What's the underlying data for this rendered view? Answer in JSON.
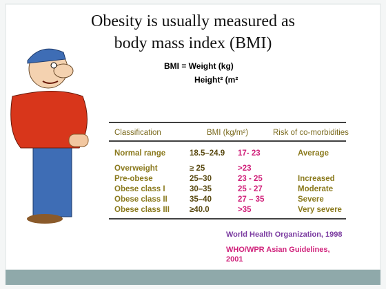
{
  "title": [
    "Obesity is usually measured as",
    "body mass index (BMI)"
  ],
  "formula": {
    "numerator": "BMI = Weight (kg)",
    "denominator": "Height² (m²"
  },
  "table": {
    "header": [
      "Classification",
      "BMI (kg/m²)",
      "Risk of co-morbidities"
    ],
    "rows": [
      {
        "classification": "Normal range",
        "bmi": "18.5–24.9",
        "asian": "17- 23",
        "risk": "Average"
      },
      {
        "classification": "Overweight",
        "bmi": "≥ 25",
        "asian": ">23"
      },
      {
        "classification": "Pre-obese",
        "bmi": "25–30",
        "asian": "23 - 25",
        "risk": "Increased"
      },
      {
        "classification": "Obese class I",
        "bmi": "30–35",
        "asian": "25 - 27",
        "risk": "Moderate"
      },
      {
        "classification": "Obese class II",
        "bmi": "35–40",
        "asian": "27 – 35",
        "risk": "Severe"
      },
      {
        "classification": "Obese class III",
        "bmi": "≥40.0",
        "asian": ">35",
        "risk": "Very severe"
      }
    ]
  },
  "notes": {
    "who": "World Health Organization, 1998",
    "asian": [
      "WHO/WPR Asian Guidelines,",
      "2001"
    ]
  }
}
